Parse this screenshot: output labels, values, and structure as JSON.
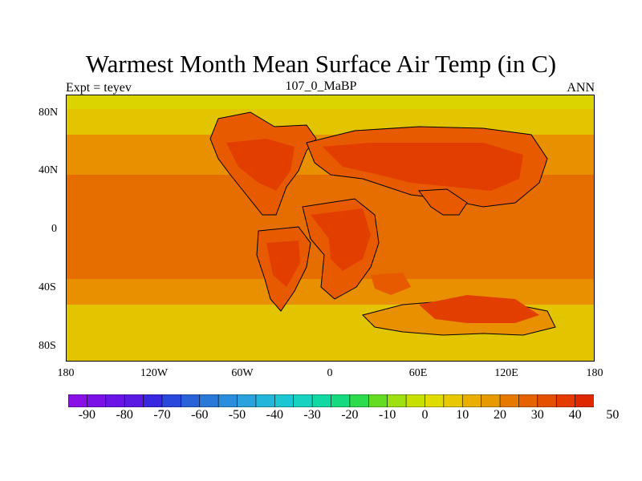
{
  "title": "Warmest Month Mean Surface Air Temp (in C)",
  "subtitle_left": "Expt = teyev",
  "subtitle_center": "107_0_MaBP",
  "subtitle_right": "ANN",
  "y_ticks": [
    "80N",
    "40N",
    "0",
    "40S",
    "80S"
  ],
  "x_ticks": [
    "180",
    "120W",
    "60W",
    "0",
    "60E",
    "120E",
    "180"
  ],
  "colorbar": {
    "labels": [
      "-90",
      "-80",
      "-70",
      "-60",
      "-50",
      "-40",
      "-30",
      "-20",
      "-10",
      "0",
      "10",
      "20",
      "30",
      "40",
      "50"
    ],
    "colors": [
      "#8a10e8",
      "#7a12e8",
      "#6a14e8",
      "#5a1ae4",
      "#3a28e0",
      "#2a48dc",
      "#2a62da",
      "#2a78d8",
      "#2a8edc",
      "#2aa2de",
      "#24b6da",
      "#1cc6d2",
      "#16d2be",
      "#12d8a4",
      "#16da80",
      "#2cdc4c",
      "#64dc22",
      "#9ee010",
      "#c8e000",
      "#e0dc00",
      "#e8c800",
      "#e8ae00",
      "#e69a00",
      "#e67a00",
      "#e66400",
      "#e45000",
      "#e43c00",
      "#e02800"
    ]
  },
  "palette": {
    "hot": "#e23e00",
    "warm_dark": "#e85a00",
    "warm": "#e66e00",
    "orange": "#e89000",
    "light_orange": "#e8b000",
    "yellow_orange": "#e2c400",
    "yellow": "#dcd400",
    "coast": "#000000"
  }
}
